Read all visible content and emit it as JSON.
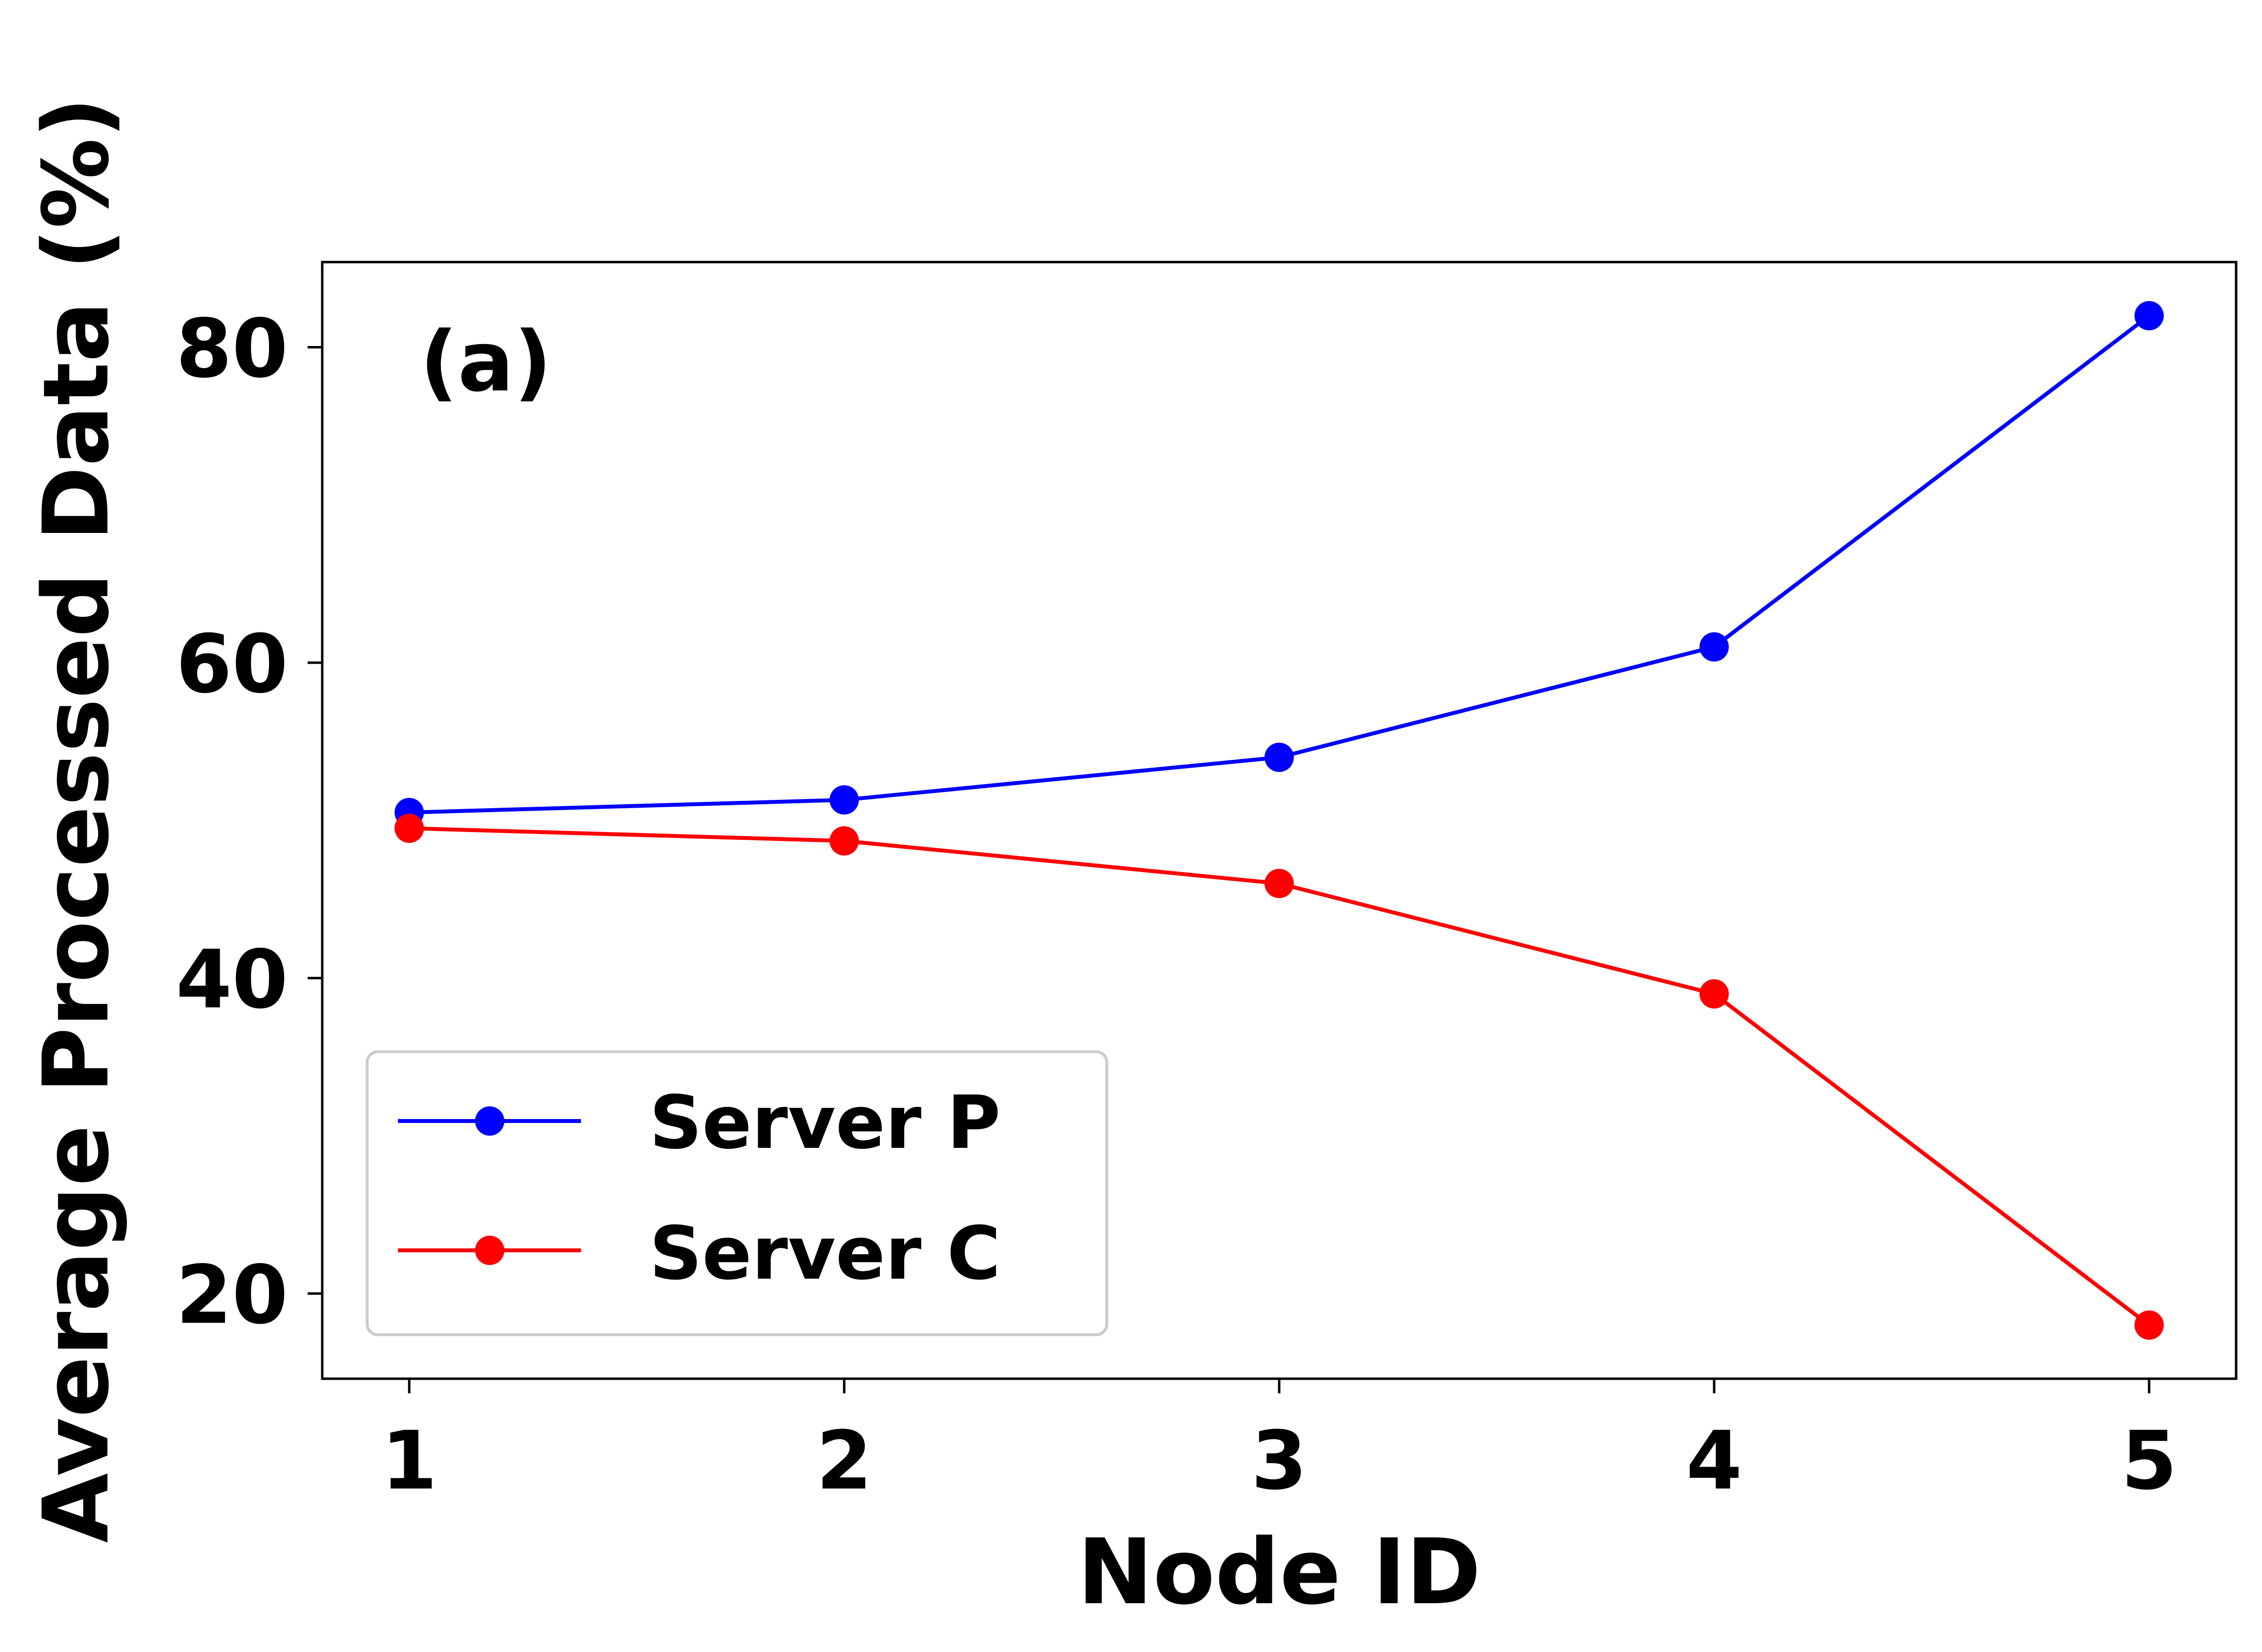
{
  "chart_data": {
    "type": "line",
    "panel_label": "(a)",
    "xlabel": "Node ID",
    "ylabel": "Average Processed Data (%)",
    "x": [
      1,
      2,
      3,
      4,
      5
    ],
    "x_tick_labels": [
      "1",
      "2",
      "3",
      "4",
      "5"
    ],
    "xlim": [
      0.8,
      5.2
    ],
    "ylim": [
      14.6,
      85.4
    ],
    "y_ticks": [
      20,
      40,
      60,
      80
    ],
    "y_tick_labels": [
      "20",
      "40",
      "60",
      "80"
    ],
    "grid": false,
    "legend_position": "lower-left",
    "series": [
      {
        "name": "Server P",
        "color": "#0000ff",
        "values": [
          50.5,
          51.3,
          54.0,
          61.0,
          82.0
        ]
      },
      {
        "name": "Server C",
        "color": "#ff0000",
        "values": [
          49.5,
          48.7,
          46.0,
          39.0,
          18.0
        ]
      }
    ]
  }
}
